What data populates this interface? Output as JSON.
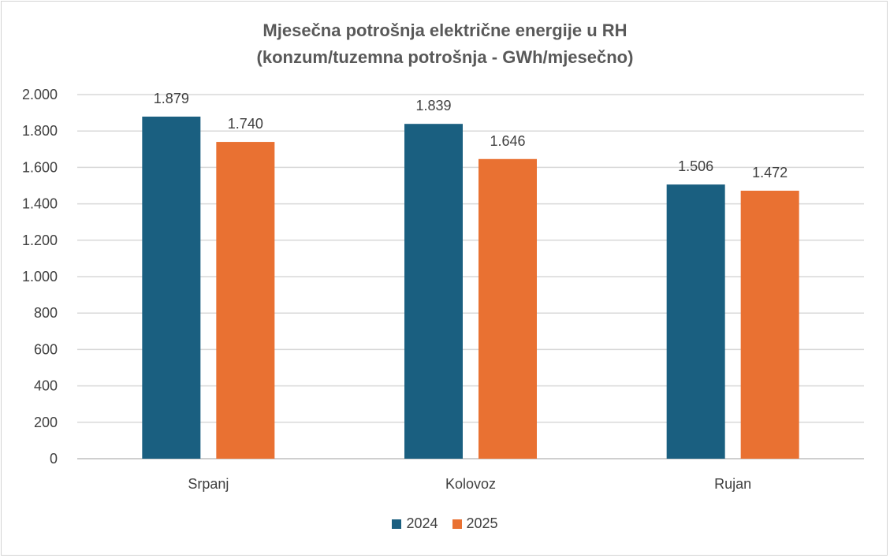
{
  "chart_data": {
    "type": "bar",
    "title_lines": [
      "Mjesečna potrošnja električne energije u RH",
      "(konzum/tuzemna potrošnja - GWh/mjesečno)"
    ],
    "categories": [
      "Srpanj",
      "Kolovoz",
      "Rujan"
    ],
    "series": [
      {
        "name": "2024",
        "color": "#1a5f80",
        "values": [
          1879,
          1839,
          1506
        ],
        "labels": [
          "1.879",
          "1.839",
          "1.506"
        ]
      },
      {
        "name": "2025",
        "color": "#e97132",
        "values": [
          1740,
          1646,
          1472
        ],
        "labels": [
          "1.740",
          "1.646",
          "1.472"
        ]
      }
    ],
    "yticks": [
      0,
      200,
      400,
      600,
      800,
      1000,
      1200,
      1400,
      1600,
      1800,
      2000
    ],
    "ytick_labels": [
      "0",
      "200",
      "400",
      "600",
      "800",
      "1.000",
      "1.200",
      "1.400",
      "1.600",
      "1.800",
      "2.000"
    ],
    "ylim": [
      0,
      2000
    ],
    "grid": true,
    "legend_position": "bottom"
  }
}
